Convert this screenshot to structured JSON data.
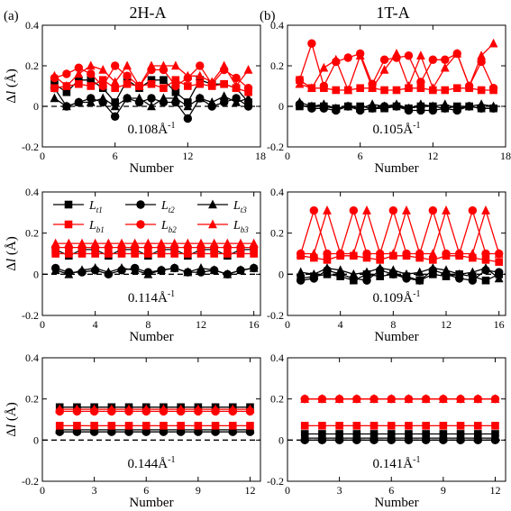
{
  "figure": {
    "column_titles": [
      "2H-A",
      "1T-A"
    ],
    "panel_letters": [
      "(a)",
      "(b)"
    ],
    "ylabel_main": "Δ",
    "ylabel_var": "l",
    "ylabel_unit": " (Å)",
    "xlabel": "Number"
  },
  "legend": [
    {
      "base": "L",
      "sub": "t1",
      "color": "#000000",
      "marker": "square"
    },
    {
      "base": "L",
      "sub": "t2",
      "color": "#000000",
      "marker": "circle"
    },
    {
      "base": "L",
      "sub": "t3",
      "color": "#000000",
      "marker": "triangle"
    },
    {
      "base": "L",
      "sub": "b1",
      "color": "#ff0000",
      "marker": "square"
    },
    {
      "base": "L",
      "sub": "b2",
      "color": "#ff0000",
      "marker": "circle"
    },
    {
      "base": "L",
      "sub": "b3",
      "color": "#ff0000",
      "marker": "triangle"
    }
  ],
  "chart_data": [
    {
      "type": "line",
      "panel": "2H-A top",
      "annotation": "0.108Å",
      "annotation_sup": "-1",
      "xlabel": "Number",
      "ylabel": "Δl (Å)",
      "xlim": [
        0,
        18
      ],
      "ylim": [
        -0.2,
        0.4
      ],
      "xticks": [
        0,
        6,
        12,
        18
      ],
      "yticks": [
        -0.2,
        0,
        0.2,
        0.4
      ],
      "x": [
        1,
        2,
        3,
        4,
        5,
        6,
        7,
        8,
        9,
        10,
        11,
        12,
        13,
        14,
        15,
        16,
        17
      ],
      "series": [
        {
          "name": "Lt1",
          "values": [
            0.11,
            0.07,
            0.13,
            0.13,
            0.09,
            0.02,
            0.13,
            0.09,
            0.13,
            0.13,
            0.07,
            0.02,
            0.13,
            0.11,
            0.11,
            0.09,
            0.02
          ]
        },
        {
          "name": "Lt2",
          "values": [
            0.09,
            0.0,
            0.02,
            0.04,
            0.02,
            -0.05,
            0.04,
            0.02,
            0.04,
            0.02,
            0.02,
            -0.06,
            0.04,
            0.0,
            0.02,
            0.04,
            0.0
          ]
        },
        {
          "name": "Lt3",
          "values": [
            0.04,
            0.0,
            0.02,
            0.02,
            0.04,
            0.0,
            0.04,
            0.04,
            0.0,
            0.04,
            0.04,
            0.0,
            0.04,
            0.02,
            0.05,
            0.02,
            0.04
          ]
        },
        {
          "name": "Lb1",
          "values": [
            0.09,
            0.1,
            0.11,
            0.1,
            0.13,
            0.09,
            0.11,
            0.1,
            0.11,
            0.09,
            0.13,
            0.1,
            0.11,
            0.1,
            0.11,
            0.09,
            0.07
          ]
        },
        {
          "name": "Lb2",
          "values": [
            0.14,
            0.16,
            0.19,
            0.16,
            0.1,
            0.2,
            0.15,
            0.1,
            0.18,
            0.18,
            0.1,
            0.14,
            0.2,
            0.11,
            0.18,
            0.14,
            0.09
          ]
        },
        {
          "name": "Lb3",
          "values": [
            0.15,
            0.1,
            0.16,
            0.2,
            0.18,
            0.12,
            0.2,
            0.1,
            0.2,
            0.2,
            0.2,
            0.15,
            0.15,
            0.12,
            0.2,
            0.1,
            0.18
          ]
        }
      ]
    },
    {
      "type": "line",
      "panel": "1T-A top",
      "annotation": "0.105Å",
      "annotation_sup": "-1",
      "xlabel": "Number",
      "ylabel": "Δl (Å)",
      "xlim": [
        0,
        18
      ],
      "ylim": [
        -0.2,
        0.4
      ],
      "xticks": [
        0,
        6,
        12,
        18
      ],
      "yticks": [
        -0.2,
        0,
        0.2,
        0.4
      ],
      "x": [
        1,
        2,
        3,
        4,
        5,
        6,
        7,
        8,
        9,
        10,
        11,
        12,
        13,
        14,
        15,
        16,
        17
      ],
      "series": [
        {
          "name": "Lt1",
          "values": [
            0.0,
            0.0,
            0.0,
            -0.01,
            0.0,
            0.0,
            -0.01,
            -0.01,
            0.0,
            -0.01,
            0.0,
            0.0,
            -0.01,
            0.0,
            0.0,
            -0.01,
            -0.01
          ]
        },
        {
          "name": "Lt2",
          "values": [
            0.01,
            -0.01,
            -0.01,
            -0.02,
            0.0,
            -0.02,
            -0.01,
            0.0,
            0.0,
            -0.02,
            -0.02,
            -0.02,
            -0.01,
            -0.02,
            0.0,
            -0.01,
            -0.01
          ]
        },
        {
          "name": "Lt3",
          "values": [
            0.02,
            0.0,
            0.01,
            -0.01,
            0.0,
            -0.01,
            0.01,
            0.0,
            0.01,
            -0.01,
            0.01,
            0.0,
            0.01,
            -0.01,
            0.0,
            0.01,
            0.0
          ]
        },
        {
          "name": "Lb1",
          "values": [
            0.13,
            0.09,
            0.09,
            0.08,
            0.08,
            0.09,
            0.09,
            0.08,
            0.08,
            0.09,
            0.09,
            0.08,
            0.08,
            0.09,
            0.09,
            0.08,
            0.08
          ]
        },
        {
          "name": "Lb2",
          "values": [
            0.13,
            0.31,
            0.1,
            0.22,
            0.24,
            0.26,
            0.11,
            0.23,
            0.24,
            0.25,
            0.12,
            0.23,
            0.23,
            0.26,
            0.1,
            0.22,
            0.09
          ]
        },
        {
          "name": "Lb3",
          "values": [
            0.11,
            0.09,
            0.19,
            0.23,
            0.08,
            0.25,
            0.09,
            0.18,
            0.26,
            0.1,
            0.25,
            0.09,
            0.19,
            0.26,
            0.1,
            0.25,
            0.31
          ]
        }
      ]
    },
    {
      "type": "line",
      "panel": "2H-A middle",
      "annotation": "0.114Å",
      "annotation_sup": "-1",
      "xlabel": "Number",
      "ylabel": "Δl (Å)",
      "xlim": [
        0,
        16.5
      ],
      "ylim": [
        -0.2,
        0.4
      ],
      "xticks": [
        0,
        4,
        8,
        12,
        16
      ],
      "yticks": [
        -0.2,
        0,
        0.2,
        0.4
      ],
      "x": [
        1,
        2,
        3,
        4,
        5,
        6,
        7,
        8,
        9,
        10,
        11,
        12,
        13,
        14,
        15,
        16
      ],
      "series": [
        {
          "name": "Lt1",
          "values": [
            0.12,
            0.09,
            0.12,
            0.12,
            0.09,
            0.12,
            0.12,
            0.09,
            0.12,
            0.12,
            0.09,
            0.12,
            0.12,
            0.09,
            0.12,
            0.12
          ]
        },
        {
          "name": "Lt2",
          "values": [
            0.03,
            0.01,
            0.01,
            0.02,
            0.0,
            0.02,
            0.03,
            0.01,
            0.02,
            0.03,
            0.01,
            0.01,
            0.02,
            0.0,
            0.02,
            0.03
          ]
        },
        {
          "name": "Lt3",
          "values": [
            0.02,
            0.0,
            0.02,
            0.03,
            0.01,
            0.03,
            0.02,
            0.0,
            0.02,
            0.03,
            0.01,
            0.03,
            0.02,
            0.0,
            0.02,
            0.03
          ]
        },
        {
          "name": "Lb1",
          "values": [
            0.1,
            0.1,
            0.1,
            0.1,
            0.1,
            0.1,
            0.1,
            0.1,
            0.1,
            0.1,
            0.1,
            0.1,
            0.1,
            0.1,
            0.1,
            0.1
          ]
        },
        {
          "name": "Lb2",
          "values": [
            0.13,
            0.13,
            0.13,
            0.13,
            0.13,
            0.13,
            0.13,
            0.13,
            0.13,
            0.13,
            0.13,
            0.13,
            0.13,
            0.13,
            0.13,
            0.13
          ]
        },
        {
          "name": "Lb3",
          "values": [
            0.15,
            0.15,
            0.15,
            0.15,
            0.15,
            0.15,
            0.15,
            0.15,
            0.15,
            0.15,
            0.15,
            0.15,
            0.15,
            0.15,
            0.15,
            0.15
          ]
        }
      ]
    },
    {
      "type": "line",
      "panel": "1T-A middle",
      "annotation": "0.109Å",
      "annotation_sup": "-1",
      "xlabel": "Number",
      "ylabel": "Δl (Å)",
      "xlim": [
        0,
        16.5
      ],
      "ylim": [
        -0.2,
        0.4
      ],
      "xticks": [
        0,
        4,
        8,
        12,
        16
      ],
      "yticks": [
        -0.2,
        0,
        0.2,
        0.4
      ],
      "x": [
        1,
        2,
        3,
        4,
        5,
        6,
        7,
        8,
        9,
        10,
        11,
        12,
        13,
        14,
        15,
        16
      ],
      "series": [
        {
          "name": "Lt1",
          "values": [
            -0.02,
            -0.01,
            0.0,
            -0.01,
            -0.03,
            0.0,
            -0.01,
            0.0,
            -0.01,
            -0.03,
            0.0,
            -0.01,
            0.0,
            -0.01,
            -0.03,
            0.0
          ]
        },
        {
          "name": "Lt2",
          "values": [
            -0.03,
            -0.02,
            0.02,
            0.0,
            -0.02,
            -0.03,
            0.02,
            0.0,
            -0.02,
            -0.03,
            0.02,
            0.0,
            -0.02,
            -0.03,
            0.02,
            0.01
          ]
        },
        {
          "name": "Lt3",
          "values": [
            0.01,
            0.0,
            0.03,
            0.02,
            0.0,
            0.01,
            0.03,
            0.02,
            0.0,
            0.01,
            0.03,
            0.02,
            0.0,
            0.01,
            0.03,
            -0.02
          ]
        },
        {
          "name": "Lb1",
          "values": [
            0.09,
            0.08,
            0.07,
            0.09,
            0.09,
            0.08,
            0.07,
            0.09,
            0.09,
            0.08,
            0.07,
            0.09,
            0.09,
            0.08,
            0.07,
            0.06
          ]
        },
        {
          "name": "Lb2",
          "values": [
            0.1,
            0.31,
            0.1,
            0.1,
            0.31,
            0.1,
            0.1,
            0.31,
            0.1,
            0.1,
            0.31,
            0.1,
            0.1,
            0.31,
            0.1,
            0.1
          ]
        },
        {
          "name": "Lb3",
          "values": [
            0.1,
            0.1,
            0.31,
            0.1,
            0.1,
            0.31,
            0.1,
            0.1,
            0.31,
            0.1,
            0.1,
            0.31,
            0.1,
            0.1,
            0.31,
            0.1
          ]
        }
      ]
    },
    {
      "type": "line",
      "panel": "2H-A bottom",
      "annotation": "0.144Å",
      "annotation_sup": "-1",
      "xlabel": "Number",
      "ylabel": "Δl (Å)",
      "xlim": [
        0,
        12.6
      ],
      "ylim": [
        -0.2,
        0.4
      ],
      "xticks": [
        0,
        3,
        6,
        9,
        12
      ],
      "yticks": [
        -0.2,
        0,
        0.2,
        0.4
      ],
      "x": [
        1,
        2,
        3,
        4,
        5,
        6,
        7,
        8,
        9,
        10,
        11,
        12
      ],
      "series": [
        {
          "name": "Lt1",
          "values": [
            0.16,
            0.16,
            0.16,
            0.16,
            0.16,
            0.16,
            0.16,
            0.16,
            0.16,
            0.16,
            0.16,
            0.16
          ]
        },
        {
          "name": "Lt2",
          "values": [
            0.04,
            0.04,
            0.04,
            0.04,
            0.04,
            0.04,
            0.04,
            0.04,
            0.04,
            0.04,
            0.04,
            0.04
          ]
        },
        {
          "name": "Lt3",
          "values": [
            0.05,
            0.05,
            0.05,
            0.05,
            0.05,
            0.05,
            0.05,
            0.05,
            0.05,
            0.05,
            0.05,
            0.05
          ]
        },
        {
          "name": "Lb1",
          "values": [
            0.07,
            0.07,
            0.07,
            0.07,
            0.07,
            0.07,
            0.07,
            0.07,
            0.07,
            0.07,
            0.07,
            0.07
          ]
        },
        {
          "name": "Lb2",
          "values": [
            0.14,
            0.14,
            0.14,
            0.14,
            0.14,
            0.14,
            0.14,
            0.14,
            0.14,
            0.14,
            0.14,
            0.14
          ]
        },
        {
          "name": "Lb3",
          "values": [
            0.15,
            0.15,
            0.15,
            0.15,
            0.15,
            0.15,
            0.15,
            0.15,
            0.15,
            0.15,
            0.15,
            0.15
          ]
        }
      ]
    },
    {
      "type": "line",
      "panel": "1T-A bottom",
      "annotation": "0.141Å",
      "annotation_sup": "-1",
      "xlabel": "Number",
      "ylabel": "Δl (Å)",
      "xlim": [
        0,
        12.6
      ],
      "ylim": [
        -0.2,
        0.4
      ],
      "xticks": [
        0,
        3,
        6,
        9,
        12
      ],
      "yticks": [
        -0.2,
        0,
        0.2,
        0.4
      ],
      "x": [
        1,
        2,
        3,
        4,
        5,
        6,
        7,
        8,
        9,
        10,
        11,
        12
      ],
      "series": [
        {
          "name": "Lt1",
          "values": [
            0.03,
            0.03,
            0.03,
            0.03,
            0.03,
            0.03,
            0.03,
            0.03,
            0.03,
            0.03,
            0.03,
            0.03
          ]
        },
        {
          "name": "Lt2",
          "values": [
            0.0,
            0.0,
            0.0,
            0.0,
            0.0,
            0.0,
            0.0,
            0.0,
            0.0,
            0.0,
            0.0,
            0.0
          ]
        },
        {
          "name": "Lt3",
          "values": [
            0.01,
            0.01,
            0.01,
            0.01,
            0.01,
            0.01,
            0.01,
            0.01,
            0.01,
            0.01,
            0.01,
            0.01
          ]
        },
        {
          "name": "Lb1",
          "values": [
            0.07,
            0.07,
            0.07,
            0.07,
            0.07,
            0.07,
            0.07,
            0.07,
            0.07,
            0.07,
            0.07,
            0.07
          ]
        },
        {
          "name": "Lb2",
          "values": [
            0.2,
            0.2,
            0.2,
            0.2,
            0.2,
            0.2,
            0.2,
            0.2,
            0.2,
            0.2,
            0.2,
            0.2
          ]
        },
        {
          "name": "Lb3",
          "values": [
            0.2,
            0.2,
            0.2,
            0.2,
            0.2,
            0.2,
            0.2,
            0.2,
            0.2,
            0.2,
            0.2,
            0.2
          ]
        }
      ]
    }
  ]
}
